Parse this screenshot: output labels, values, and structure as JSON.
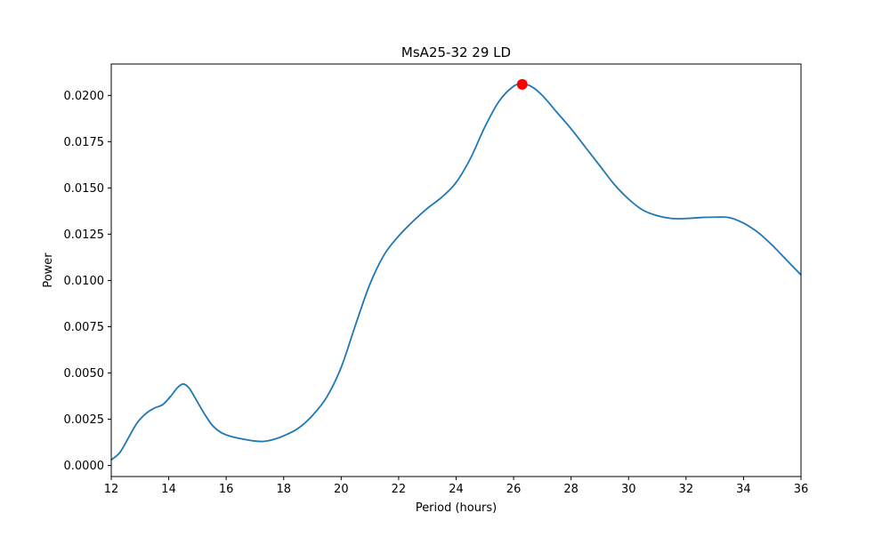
{
  "chart_data": {
    "type": "line",
    "title": "MsA25-32 29 LD",
    "xlabel": "Period (hours)",
    "ylabel": "Power",
    "xlim": [
      12,
      36
    ],
    "ylim": [
      -0.0006,
      0.0217
    ],
    "grid": false,
    "x_ticks": [
      {
        "value": 12,
        "label": "12"
      },
      {
        "value": 14,
        "label": "14"
      },
      {
        "value": 16,
        "label": "16"
      },
      {
        "value": 18,
        "label": "18"
      },
      {
        "value": 20,
        "label": "20"
      },
      {
        "value": 22,
        "label": "22"
      },
      {
        "value": 24,
        "label": "24"
      },
      {
        "value": 26,
        "label": "26"
      },
      {
        "value": 28,
        "label": "28"
      },
      {
        "value": 30,
        "label": "30"
      },
      {
        "value": 32,
        "label": "32"
      },
      {
        "value": 34,
        "label": "34"
      },
      {
        "value": 36,
        "label": "36"
      }
    ],
    "y_ticks": [
      {
        "value": 0.0,
        "label": "0.0000"
      },
      {
        "value": 0.0025,
        "label": "0.0025"
      },
      {
        "value": 0.005,
        "label": "0.0050"
      },
      {
        "value": 0.0075,
        "label": "0.0075"
      },
      {
        "value": 0.01,
        "label": "0.0100"
      },
      {
        "value": 0.0125,
        "label": "0.0125"
      },
      {
        "value": 0.015,
        "label": "0.0150"
      },
      {
        "value": 0.0175,
        "label": "0.0175"
      },
      {
        "value": 0.02,
        "label": "0.0200"
      }
    ],
    "series": [
      {
        "color": "#1f77b4",
        "x": [
          12.0,
          12.3,
          12.6,
          12.9,
          13.2,
          13.5,
          13.8,
          14.1,
          14.3,
          14.5,
          14.7,
          14.9,
          15.2,
          15.5,
          15.8,
          16.1,
          16.5,
          17.0,
          17.3,
          17.6,
          18.0,
          18.5,
          19.0,
          19.5,
          20.0,
          20.5,
          21.0,
          21.5,
          22.0,
          22.5,
          23.0,
          23.5,
          24.0,
          24.5,
          25.0,
          25.5,
          26.0,
          26.3,
          26.6,
          27.0,
          27.5,
          28.0,
          28.5,
          29.0,
          29.5,
          30.0,
          30.5,
          31.0,
          31.5,
          32.0,
          32.5,
          33.0,
          33.5,
          34.0,
          34.5,
          35.0,
          35.5,
          36.0
        ],
        "y": [
          0.0003,
          0.0007,
          0.0015,
          0.0023,
          0.0028,
          0.0031,
          0.0033,
          0.0038,
          0.0042,
          0.0044,
          0.0042,
          0.0037,
          0.0029,
          0.0022,
          0.0018,
          0.0016,
          0.00145,
          0.00132,
          0.0013,
          0.00138,
          0.0016,
          0.002,
          0.0027,
          0.0037,
          0.0053,
          0.0076,
          0.0098,
          0.0114,
          0.0124,
          0.0132,
          0.0139,
          0.0145,
          0.0153,
          0.0166,
          0.0183,
          0.0197,
          0.0205,
          0.0206,
          0.0205,
          0.02,
          0.0191,
          0.0182,
          0.0172,
          0.0162,
          0.0152,
          0.0144,
          0.0138,
          0.0135,
          0.01335,
          0.01335,
          0.0134,
          0.01342,
          0.0134,
          0.0131,
          0.0126,
          0.0119,
          0.0111,
          0.0103
        ]
      }
    ],
    "peak_marker": {
      "x": 26.3,
      "y": 0.0206,
      "color": "#ff0000"
    }
  }
}
